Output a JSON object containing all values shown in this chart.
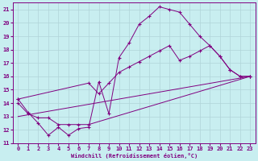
{
  "xlabel": "Windchill (Refroidissement éolien,°C)",
  "xlim": [
    -0.5,
    23.5
  ],
  "ylim": [
    11,
    21.5
  ],
  "xticks": [
    0,
    1,
    2,
    3,
    4,
    5,
    6,
    7,
    8,
    9,
    10,
    11,
    12,
    13,
    14,
    15,
    16,
    17,
    18,
    19,
    20,
    21,
    22,
    23
  ],
  "yticks": [
    11,
    12,
    13,
    14,
    15,
    16,
    17,
    18,
    19,
    20,
    21
  ],
  "bg_color": "#c8eef0",
  "grid_color": "#b0d4d8",
  "line_color": "#800080",
  "line1_x": [
    0,
    1,
    2,
    3,
    4,
    5,
    6,
    7,
    8,
    9,
    10,
    11,
    12,
    13,
    14,
    15,
    16,
    17,
    18,
    19,
    20,
    21,
    22,
    23
  ],
  "line1_y": [
    14.3,
    13.3,
    12.5,
    11.6,
    12.2,
    11.6,
    12.1,
    12.2,
    15.6,
    13.2,
    17.4,
    18.5,
    19.9,
    20.5,
    21.2,
    21.0,
    20.8,
    19.9,
    19.0,
    18.3,
    17.5,
    16.5,
    16.0,
    16.0
  ],
  "line2_x": [
    0,
    7,
    8,
    9,
    10,
    11,
    12,
    13,
    14,
    15,
    16,
    17,
    18,
    19,
    20,
    21,
    22,
    23
  ],
  "line2_y": [
    14.3,
    15.5,
    14.7,
    15.5,
    16.3,
    16.7,
    17.1,
    17.5,
    17.9,
    18.3,
    17.2,
    17.5,
    17.9,
    18.3,
    17.5,
    16.5,
    16.0,
    16.0
  ],
  "line3_x": [
    0,
    1,
    2,
    3,
    4,
    5,
    6,
    7,
    23
  ],
  "line3_y": [
    14.0,
    13.2,
    12.9,
    12.9,
    12.4,
    12.4,
    12.4,
    12.4,
    16.0
  ],
  "line4_x": [
    0,
    23
  ],
  "line4_y": [
    13.0,
    16.0
  ]
}
